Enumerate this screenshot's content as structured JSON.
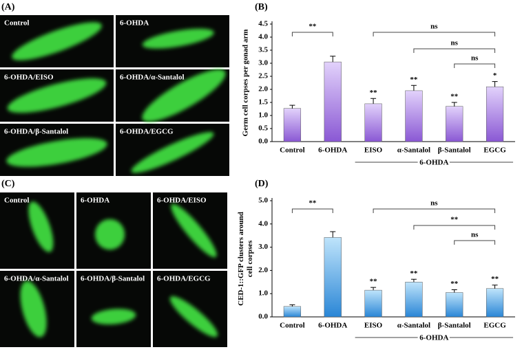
{
  "panels": {
    "A": {
      "label": "(A)",
      "images": [
        "Control",
        "6-OHDA",
        "6-OHDA/EISO",
        "6-OHDA/α-Santalol",
        "6-OHDA/β-Santalol",
        "6-OHDA/EGCG"
      ]
    },
    "C": {
      "label": "(C)",
      "images": [
        "Control",
        "6-OHDA",
        "6-OHDA/EISO",
        "6-OHDA/α-Santalol",
        "6-OHDA/β-Santalol",
        "6-OHDA/EGCG"
      ]
    }
  },
  "chart_data": [
    {
      "type": "bar",
      "panel_label": "(B)",
      "ylabel": [
        "Germ cell corpses per gonad arm"
      ],
      "categories": [
        "Control",
        "6-OHDA",
        "EISO",
        "α-Santalol",
        "β-Santalol",
        "EGCG"
      ],
      "values": [
        1.27,
        3.05,
        1.45,
        1.95,
        1.35,
        2.1
      ],
      "errors": [
        0.12,
        0.22,
        0.2,
        0.2,
        0.15,
        0.2
      ],
      "stars": [
        null,
        null,
        "**",
        "**",
        "**",
        "*"
      ],
      "brackets": [
        {
          "from": "Control",
          "to": "6-OHDA",
          "label": "**"
        },
        {
          "from": "EISO",
          "to": "EGCG",
          "label": "ns"
        },
        {
          "from": "α-Santalol",
          "to": "EGCG",
          "label": "ns"
        },
        {
          "from": "β-Santalol",
          "to": "EGCG",
          "label": "ns"
        }
      ],
      "group": {
        "label": "6-OHDA",
        "from": "EISO",
        "to": "EGCG"
      },
      "colors": [
        "#e2d2fb",
        "#8a58d4"
      ],
      "ylim": [
        0,
        4.5
      ],
      "yticks": [
        {
          "value": 0,
          "label": "0.0"
        },
        0.5,
        {
          "value": 1,
          "label": "1.0"
        },
        1.5,
        {
          "value": 2,
          "label": "2.0"
        },
        2.5,
        {
          "value": 3,
          "label": "3.0"
        },
        3.5,
        {
          "value": 4,
          "label": "4.0"
        },
        4.5
      ]
    },
    {
      "type": "bar",
      "panel_label": "(D)",
      "ylabel": [
        "CED-1::GFP clusters around",
        "cell corpses"
      ],
      "categories": [
        "Control",
        "6-OHDA",
        "EISO",
        "α-Santalol",
        "β-Santalol",
        "EGCG"
      ],
      "values": [
        0.45,
        3.42,
        1.15,
        1.5,
        1.05,
        1.22
      ],
      "errors": [
        0.07,
        0.25,
        0.12,
        0.12,
        0.12,
        0.15
      ],
      "stars": [
        null,
        null,
        "**",
        "**",
        "**",
        "**"
      ],
      "brackets": [
        {
          "from": "Control",
          "to": "6-OHDA",
          "label": "**"
        },
        {
          "from": "EISO",
          "to": "EGCG",
          "label": "ns"
        },
        {
          "from": "α-Santalol",
          "to": "EGCG",
          "label": "**"
        },
        {
          "from": "β-Santalol",
          "to": "EGCG",
          "label": "ns"
        }
      ],
      "group": {
        "label": "6-OHDA",
        "from": "EISO",
        "to": "EGCG"
      },
      "colors": [
        "#bfe4fb",
        "#2a86d6"
      ],
      "ylim": [
        0,
        5
      ],
      "yticks": [
        {
          "value": 0,
          "label": "0.0"
        },
        {
          "value": 1,
          "label": "1.0"
        },
        {
          "value": 2,
          "label": "2.0"
        },
        {
          "value": 3,
          "label": "3.0"
        },
        {
          "value": 4,
          "label": "4.0"
        },
        {
          "value": 5,
          "label": "5.0"
        }
      ]
    }
  ]
}
